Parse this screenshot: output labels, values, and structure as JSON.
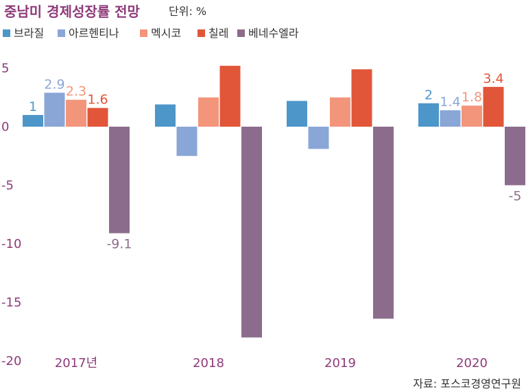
{
  "chart_data": {
    "type": "bar",
    "title": "중남미 경제성장률 전망",
    "unit": "단위: %",
    "source": "자료: 포스코경영연구원",
    "categories": [
      "2017년",
      "2018",
      "2019",
      "2020"
    ],
    "ylim": [
      -20,
      5
    ],
    "yticks": [
      "5",
      "0",
      "-5",
      "-10",
      "-15",
      "-20"
    ],
    "ytick_values": [
      5,
      0,
      -5,
      -10,
      -15,
      -20
    ],
    "grid": false,
    "legend_position": "top-left",
    "series": [
      {
        "name": "브라질",
        "color": "#4d96c9",
        "values": [
          1,
          1.9,
          2.2,
          2
        ],
        "labels": [
          "1",
          "",
          "",
          "2"
        ]
      },
      {
        "name": "아르헨티나",
        "color": "#8aa6d6",
        "values": [
          2.9,
          -2.5,
          -1.9,
          1.4
        ],
        "labels": [
          "2.9",
          "",
          "",
          "1.4"
        ]
      },
      {
        "name": "멕시코",
        "color": "#f3957b",
        "values": [
          2.3,
          2.5,
          2.5,
          1.8
        ],
        "labels": [
          "2.3",
          "",
          "",
          "1.8"
        ]
      },
      {
        "name": "칠레",
        "color": "#e15639",
        "values": [
          1.6,
          5.2,
          4.9,
          3.4
        ],
        "labels": [
          "1.6",
          "",
          "",
          "3.4"
        ]
      },
      {
        "name": "베네수엘라",
        "color": "#8c6c8c",
        "values": [
          -9.1,
          -18,
          -16.4,
          -5
        ],
        "labels": [
          "-9.1",
          "",
          "",
          "-5"
        ]
      }
    ]
  }
}
